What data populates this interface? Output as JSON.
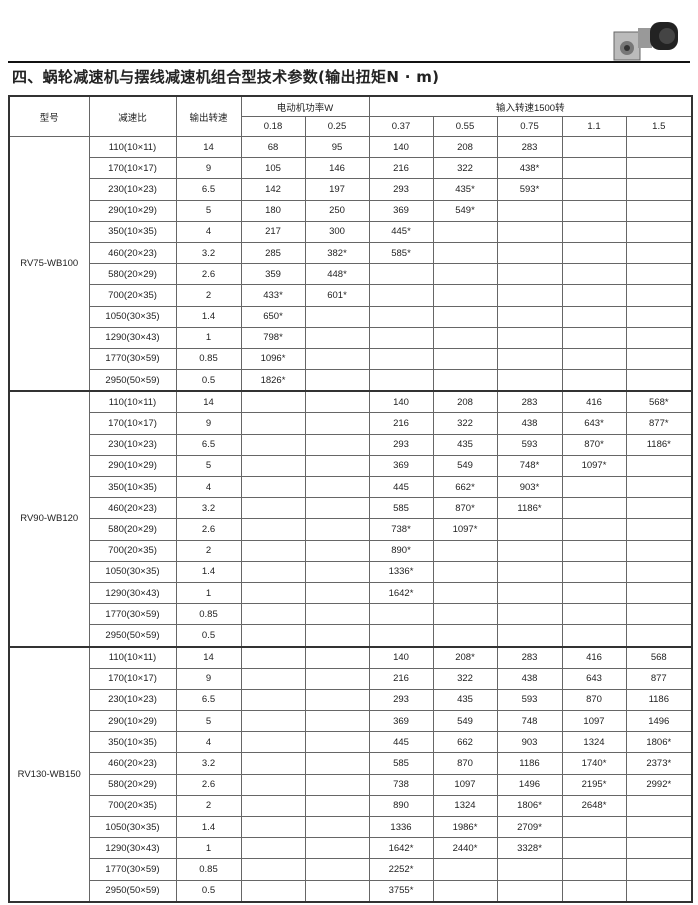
{
  "title": "四、蜗轮减速机与摆线减速机组合型技术参数(输出扭矩N · m)",
  "headers": {
    "model": "型号",
    "ratio": "减速比",
    "output_speed": "输出转速",
    "motor_power": "电动机功率W",
    "input_speed": "输入转速1500转",
    "powers": [
      "0.18",
      "0.25",
      "0.37",
      "0.55",
      "0.75",
      "1.1",
      "1.5"
    ]
  },
  "groups": [
    {
      "model": "RV75-WB100",
      "rows": [
        [
          "110(10×11)",
          "14",
          "68",
          "95",
          "140",
          "208",
          "283",
          "",
          ""
        ],
        [
          "170(10×17)",
          "9",
          "105",
          "146",
          "216",
          "322",
          "438*",
          "",
          ""
        ],
        [
          "230(10×23)",
          "6.5",
          "142",
          "197",
          "293",
          "435*",
          "593*",
          "",
          ""
        ],
        [
          "290(10×29)",
          "5",
          "180",
          "250",
          "369",
          "549*",
          "",
          "",
          ""
        ],
        [
          "350(10×35)",
          "4",
          "217",
          "300",
          "445*",
          "",
          "",
          "",
          ""
        ],
        [
          "460(20×23)",
          "3.2",
          "285",
          "382*",
          "585*",
          "",
          "",
          "",
          ""
        ],
        [
          "580(20×29)",
          "2.6",
          "359",
          "448*",
          "",
          "",
          "",
          "",
          ""
        ],
        [
          "700(20×35)",
          "2",
          "433*",
          "601*",
          "",
          "",
          "",
          "",
          ""
        ],
        [
          "1050(30×35)",
          "1.4",
          "650*",
          "",
          "",
          "",
          "",
          "",
          ""
        ],
        [
          "1290(30×43)",
          "1",
          "798*",
          "",
          "",
          "",
          "",
          "",
          ""
        ],
        [
          "1770(30×59)",
          "0.85",
          "1096*",
          "",
          "",
          "",
          "",
          "",
          ""
        ],
        [
          "2950(50×59)",
          "0.5",
          "1826*",
          "",
          "",
          "",
          "",
          "",
          ""
        ]
      ]
    },
    {
      "model": "RV90-WB120",
      "rows": [
        [
          "110(10×11)",
          "14",
          "",
          "",
          "140",
          "208",
          "283",
          "416",
          "568*"
        ],
        [
          "170(10×17)",
          "9",
          "",
          "",
          "216",
          "322",
          "438",
          "643*",
          "877*"
        ],
        [
          "230(10×23)",
          "6.5",
          "",
          "",
          "293",
          "435",
          "593",
          "870*",
          "1186*"
        ],
        [
          "290(10×29)",
          "5",
          "",
          "",
          "369",
          "549",
          "748*",
          "1097*",
          ""
        ],
        [
          "350(10×35)",
          "4",
          "",
          "",
          "445",
          "662*",
          "903*",
          "",
          ""
        ],
        [
          "460(20×23)",
          "3.2",
          "",
          "",
          "585",
          "870*",
          "1186*",
          "",
          ""
        ],
        [
          "580(20×29)",
          "2.6",
          "",
          "",
          "738*",
          "1097*",
          "",
          "",
          ""
        ],
        [
          "700(20×35)",
          "2",
          "",
          "",
          "890*",
          "",
          "",
          "",
          ""
        ],
        [
          "1050(30×35)",
          "1.4",
          "",
          "",
          "1336*",
          "",
          "",
          "",
          ""
        ],
        [
          "1290(30×43)",
          "1",
          "",
          "",
          "1642*",
          "",
          "",
          "",
          ""
        ],
        [
          "1770(30×59)",
          "0.85",
          "",
          "",
          "",
          "",
          "",
          "",
          ""
        ],
        [
          "2950(50×59)",
          "0.5",
          "",
          "",
          "",
          "",
          "",
          "",
          ""
        ]
      ]
    },
    {
      "model": "RV130-WB150",
      "rows": [
        [
          "110(10×11)",
          "14",
          "",
          "",
          "140",
          "208*",
          "283",
          "416",
          "568"
        ],
        [
          "170(10×17)",
          "9",
          "",
          "",
          "216",
          "322",
          "438",
          "643",
          "877"
        ],
        [
          "230(10×23)",
          "6.5",
          "",
          "",
          "293",
          "435",
          "593",
          "870",
          "1186"
        ],
        [
          "290(10×29)",
          "5",
          "",
          "",
          "369",
          "549",
          "748",
          "1097",
          "1496"
        ],
        [
          "350(10×35)",
          "4",
          "",
          "",
          "445",
          "662",
          "903",
          "1324",
          "1806*"
        ],
        [
          "460(20×23)",
          "3.2",
          "",
          "",
          "585",
          "870",
          "1186",
          "1740*",
          "2373*"
        ],
        [
          "580(20×29)",
          "2.6",
          "",
          "",
          "738",
          "1097",
          "1496",
          "2195*",
          "2992*"
        ],
        [
          "700(20×35)",
          "2",
          "",
          "",
          "890",
          "1324",
          "1806*",
          "2648*",
          ""
        ],
        [
          "1050(30×35)",
          "1.4",
          "",
          "",
          "1336",
          "1986*",
          "2709*",
          "",
          ""
        ],
        [
          "1290(30×43)",
          "1",
          "",
          "",
          "1642*",
          "2440*",
          "3328*",
          "",
          ""
        ],
        [
          "1770(30×59)",
          "0.85",
          "",
          "",
          "2252*",
          "",
          "",
          "",
          ""
        ],
        [
          "2950(50×59)",
          "0.5",
          "",
          "",
          "3755*",
          "",
          "",
          "",
          ""
        ]
      ]
    }
  ]
}
